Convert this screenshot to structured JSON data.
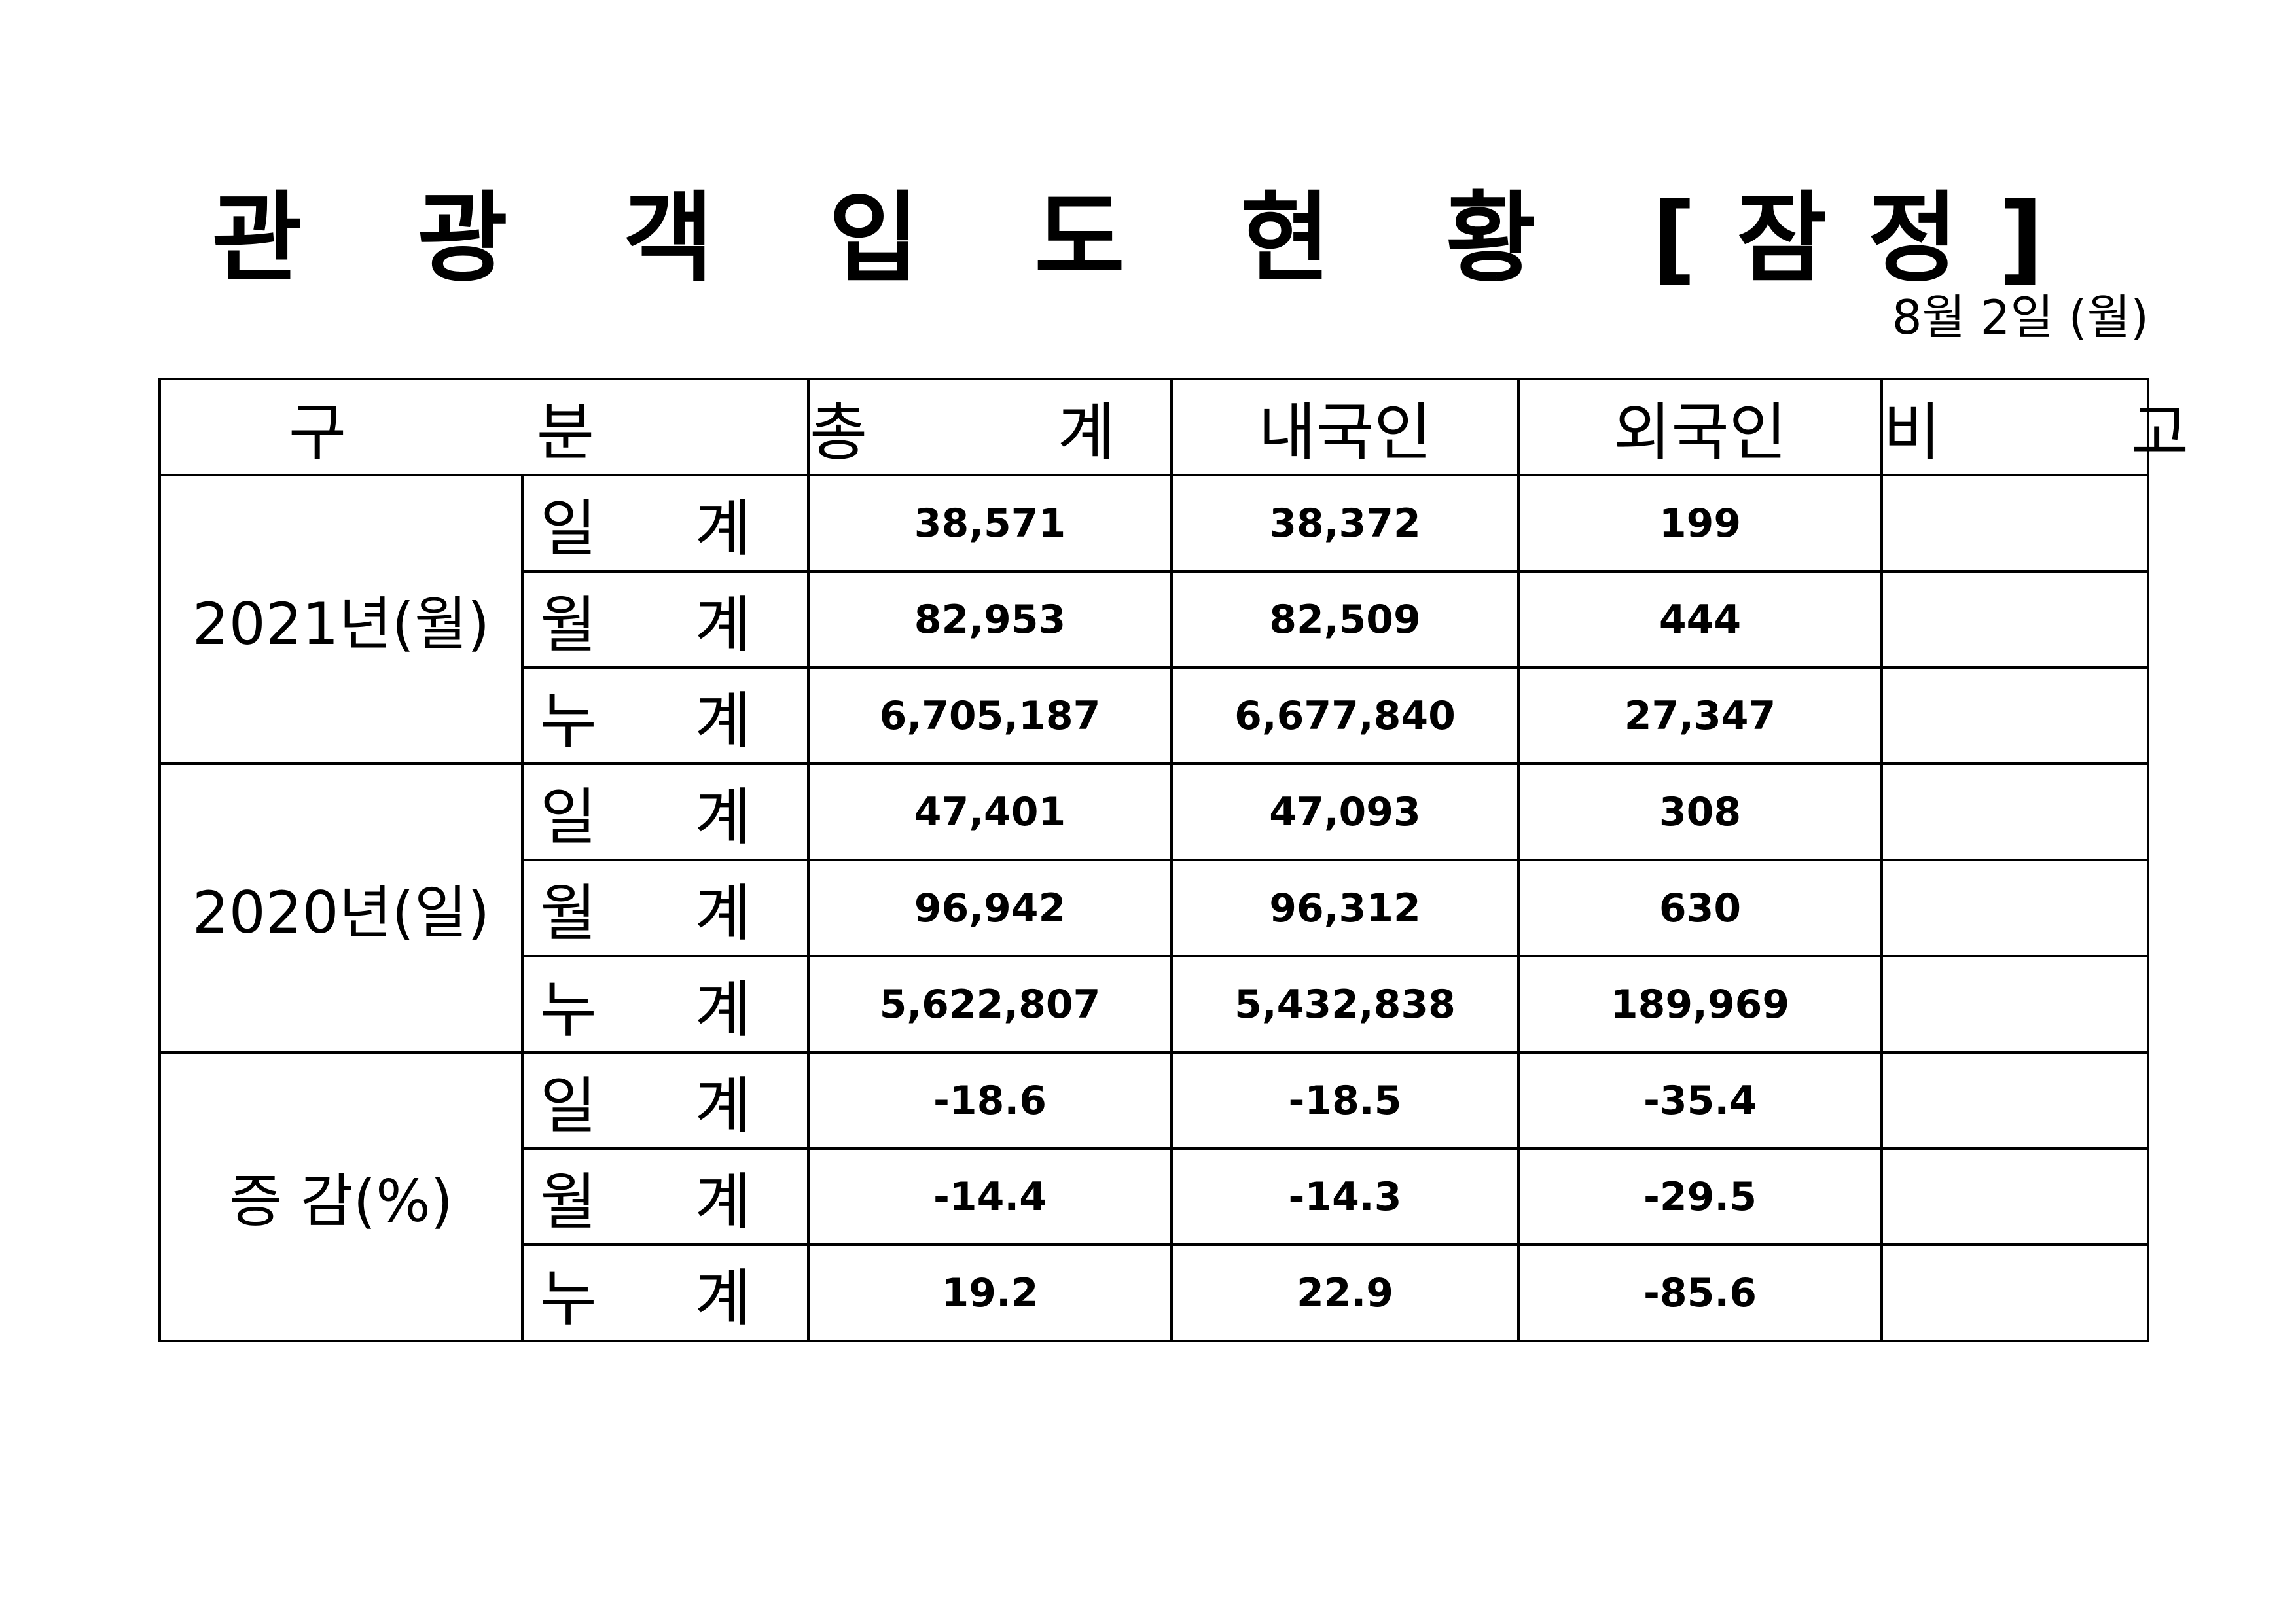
{
  "document": {
    "title": "관 광 객 입 도 현 황 [잠정]",
    "date": "8월 2일 (월)"
  },
  "table": {
    "headers": {
      "category": "구 분",
      "total": "총 계",
      "domestic": "내국인",
      "foreign": "외국인",
      "remarks": "비 고"
    },
    "groups": [
      {
        "label": "2021년(월)",
        "rows": [
          {
            "label": "일 계",
            "total": "38,571",
            "domestic": "38,372",
            "foreign": "199",
            "remarks": ""
          },
          {
            "label": "월 계",
            "total": "82,953",
            "domestic": "82,509",
            "foreign": "444",
            "remarks": ""
          },
          {
            "label": "누 계",
            "total": "6,705,187",
            "domestic": "6,677,840",
            "foreign": "27,347",
            "remarks": ""
          }
        ]
      },
      {
        "label": "2020년(일)",
        "rows": [
          {
            "label": "일 계",
            "total": "47,401",
            "domestic": "47,093",
            "foreign": "308",
            "remarks": ""
          },
          {
            "label": "월 계",
            "total": "96,942",
            "domestic": "96,312",
            "foreign": "630",
            "remarks": ""
          },
          {
            "label": "누 계",
            "total": "5,622,807",
            "domestic": "5,432,838",
            "foreign": "189,969",
            "remarks": ""
          }
        ]
      },
      {
        "label": "증 감(%)",
        "rows": [
          {
            "label": "일 계",
            "total": "-18.6",
            "domestic": "-18.5",
            "foreign": "-35.4",
            "remarks": ""
          },
          {
            "label": "월 계",
            "total": "-14.4",
            "domestic": "-14.3",
            "foreign": "-29.5",
            "remarks": ""
          },
          {
            "label": "누 계",
            "total": "19.2",
            "domestic": "22.9",
            "foreign": "-85.6",
            "remarks": ""
          }
        ]
      }
    ]
  }
}
